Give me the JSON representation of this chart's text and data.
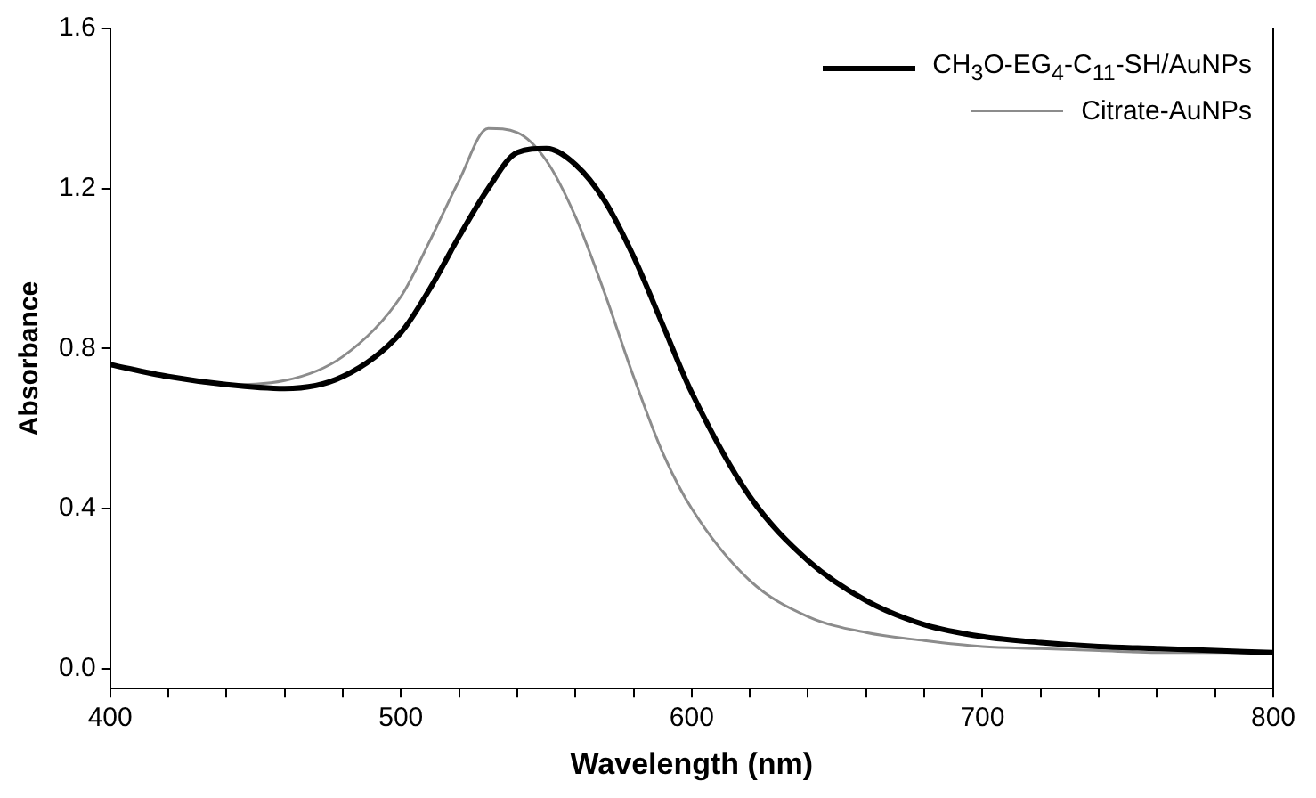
{
  "chart_data": {
    "type": "line",
    "xlabel": "Wavelength (nm)",
    "ylabel": "Absorbance",
    "x": [
      400,
      420,
      440,
      460,
      480,
      500,
      510,
      520,
      530,
      540,
      550,
      560,
      570,
      580,
      590,
      600,
      620,
      640,
      660,
      680,
      700,
      720,
      740,
      760,
      780,
      800
    ],
    "series": [
      {
        "name": "CH$_{3}$O-EG$_{4}$-C$_{11}$-SH/AuNPs",
        "color": "#000000",
        "values": [
          0.76,
          0.73,
          0.71,
          0.7,
          0.73,
          0.84,
          0.95,
          1.08,
          1.2,
          1.29,
          1.3,
          1.26,
          1.17,
          1.03,
          0.86,
          0.69,
          0.43,
          0.27,
          0.17,
          0.11,
          0.08,
          0.065,
          0.055,
          0.05,
          0.045,
          0.04
        ]
      },
      {
        "name": "Citrate-AuNPs",
        "color": "#8c8c8c",
        "values": [
          0.76,
          0.73,
          0.71,
          0.72,
          0.78,
          0.93,
          1.07,
          1.22,
          1.35,
          1.34,
          1.27,
          1.13,
          0.94,
          0.73,
          0.54,
          0.4,
          0.22,
          0.13,
          0.09,
          0.07,
          0.055,
          0.05,
          0.045,
          0.04,
          0.04,
          0.04
        ]
      }
    ],
    "xlim": [
      400,
      800
    ],
    "xticks": [
      400,
      {
        "value": 420,
        "label": null
      },
      {
        "value": 440,
        "label": null
      },
      {
        "value": 460,
        "label": null
      },
      {
        "value": 480,
        "label": null
      },
      500,
      {
        "value": 520,
        "label": null
      },
      {
        "value": 540,
        "label": null
      },
      {
        "value": 560,
        "label": null
      },
      {
        "value": 580,
        "label": null
      },
      600,
      {
        "value": 620,
        "label": null
      },
      {
        "value": 640,
        "label": null
      },
      {
        "value": 660,
        "label": null
      },
      {
        "value": 680,
        "label": null
      },
      700,
      {
        "value": 720,
        "label": null
      },
      {
        "value": 740,
        "label": null
      },
      {
        "value": 760,
        "label": null
      },
      {
        "value": 780,
        "label": null
      },
      800
    ],
    "ylim": [
      -0.05,
      1.6
    ],
    "yticks": [
      {
        "value": 0,
        "label": "0.0"
      },
      0.4,
      0.8,
      1.2,
      1.6
    ],
    "grid": false,
    "legend": "top right",
    "marker": "none",
    "line_style": "solid"
  }
}
